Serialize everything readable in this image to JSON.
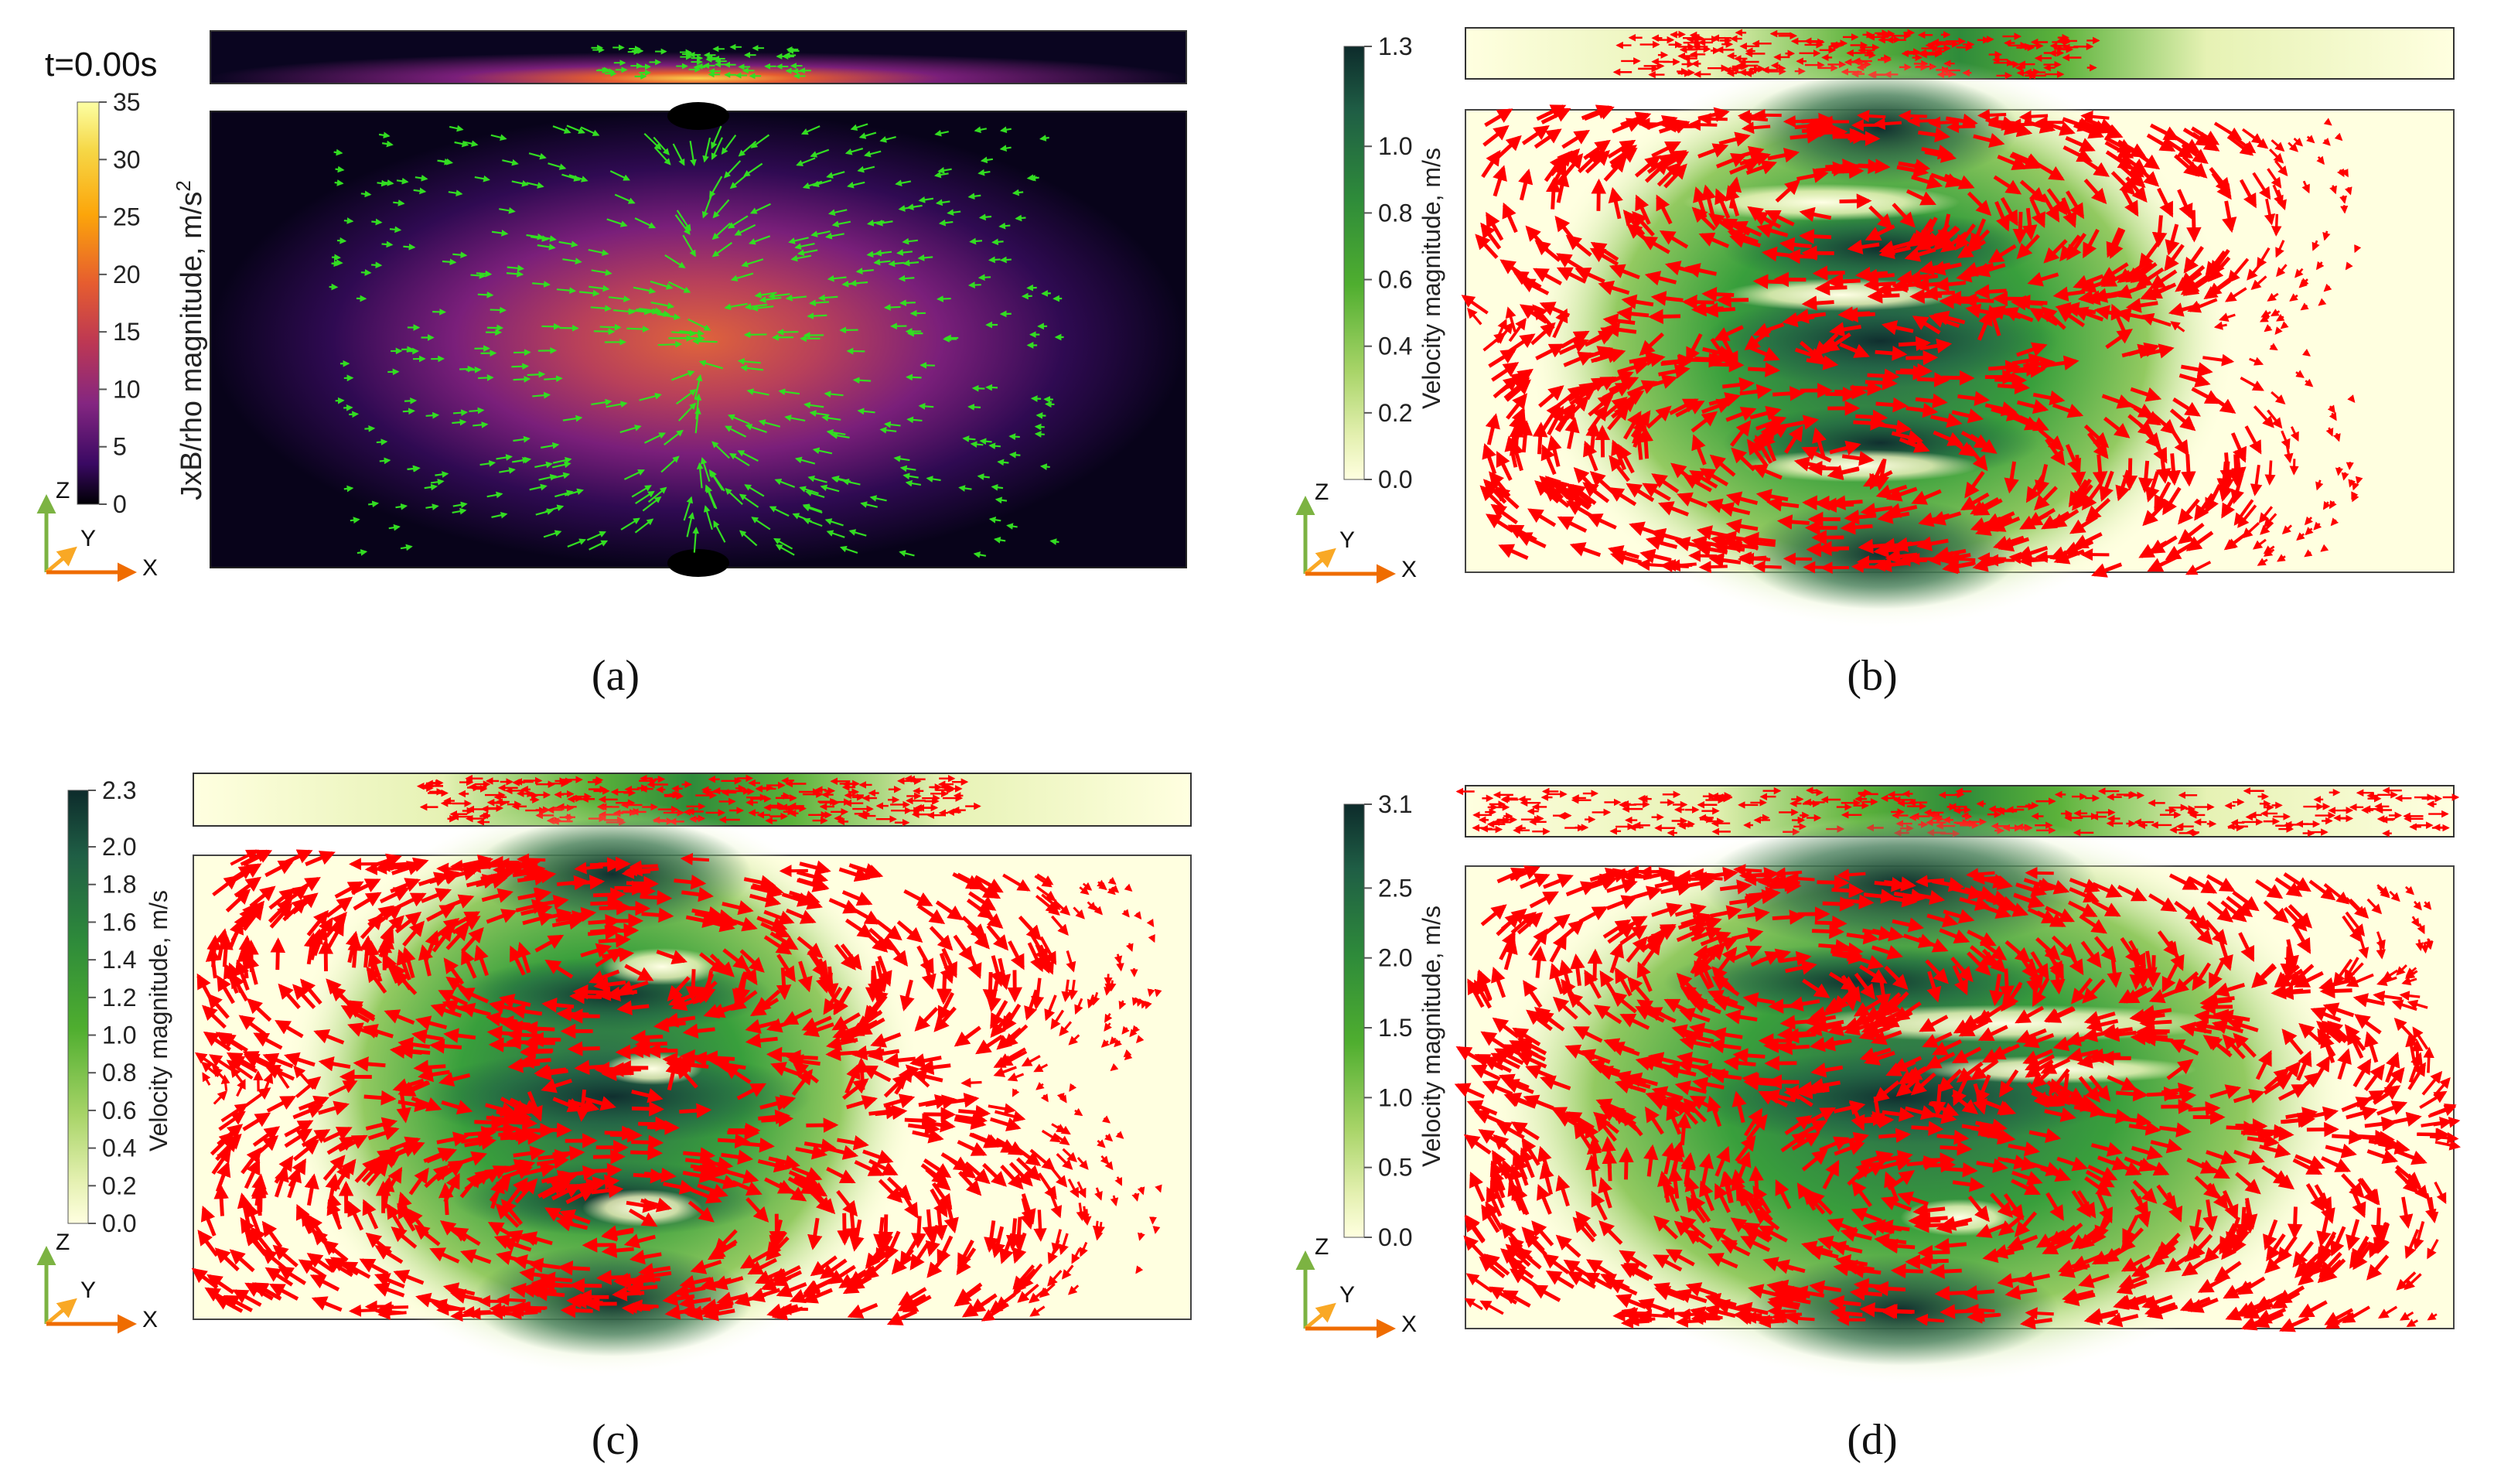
{
  "figure": {
    "panels": [
      {
        "id": "a",
        "caption": "(a)",
        "time_label": "t=0.00s",
        "colorbar": {
          "title": "JxB/rho magnitude, m/s",
          "title_superscript": "2",
          "ticks": [
            "35",
            "30",
            "25",
            "20",
            "15",
            "10",
            "5",
            "0"
          ],
          "colormap": "inferno",
          "range": [
            0,
            35
          ]
        },
        "arrow_color": "#33dd22",
        "axes_labels": {
          "z": "Z",
          "y": "Y",
          "x": "X"
        }
      },
      {
        "id": "b",
        "caption": "(b)",
        "colorbar": {
          "title": "Velocity magnitude, m/s",
          "ticks": [
            "1.3",
            "1.0",
            "0.8",
            "0.6",
            "0.4",
            "0.2",
            "0.0"
          ],
          "colormap": "green",
          "range": [
            0,
            1.3
          ]
        },
        "arrow_color": "#ff0000",
        "axes_labels": {
          "z": "Z",
          "y": "Y",
          "x": "X"
        }
      },
      {
        "id": "c",
        "caption": "(c)",
        "colorbar": {
          "title": "Velocity magnitude, m/s",
          "ticks": [
            "2.3",
            "2.0",
            "1.8",
            "1.6",
            "1.4",
            "1.2",
            "1.0",
            "0.8",
            "0.6",
            "0.4",
            "0.2",
            "0.0"
          ],
          "colormap": "green",
          "range": [
            0,
            2.3
          ]
        },
        "arrow_color": "#ff0000",
        "axes_labels": {
          "z": "Z",
          "y": "Y",
          "x": "X"
        }
      },
      {
        "id": "d",
        "caption": "(d)",
        "colorbar": {
          "title": "Velocity magnitude, m/s",
          "ticks": [
            "3.1",
            "2.5",
            "2.0",
            "1.5",
            "1.0",
            "0.5",
            "0.0"
          ],
          "colormap": "green",
          "range": [
            0,
            3.1
          ]
        },
        "arrow_color": "#ff0000",
        "axes_labels": {
          "z": "Z",
          "y": "Y",
          "x": "X"
        }
      }
    ],
    "colors": {
      "axis_z": "#7cb342",
      "axis_y": "#f9a825",
      "axis_x": "#ef6c00",
      "green_low": "#ffffe0",
      "green_mid": "#2e9a2e",
      "green_high": "#0d2b2b",
      "inferno_high": "#fcffa4",
      "inferno_low": "#000004"
    }
  }
}
